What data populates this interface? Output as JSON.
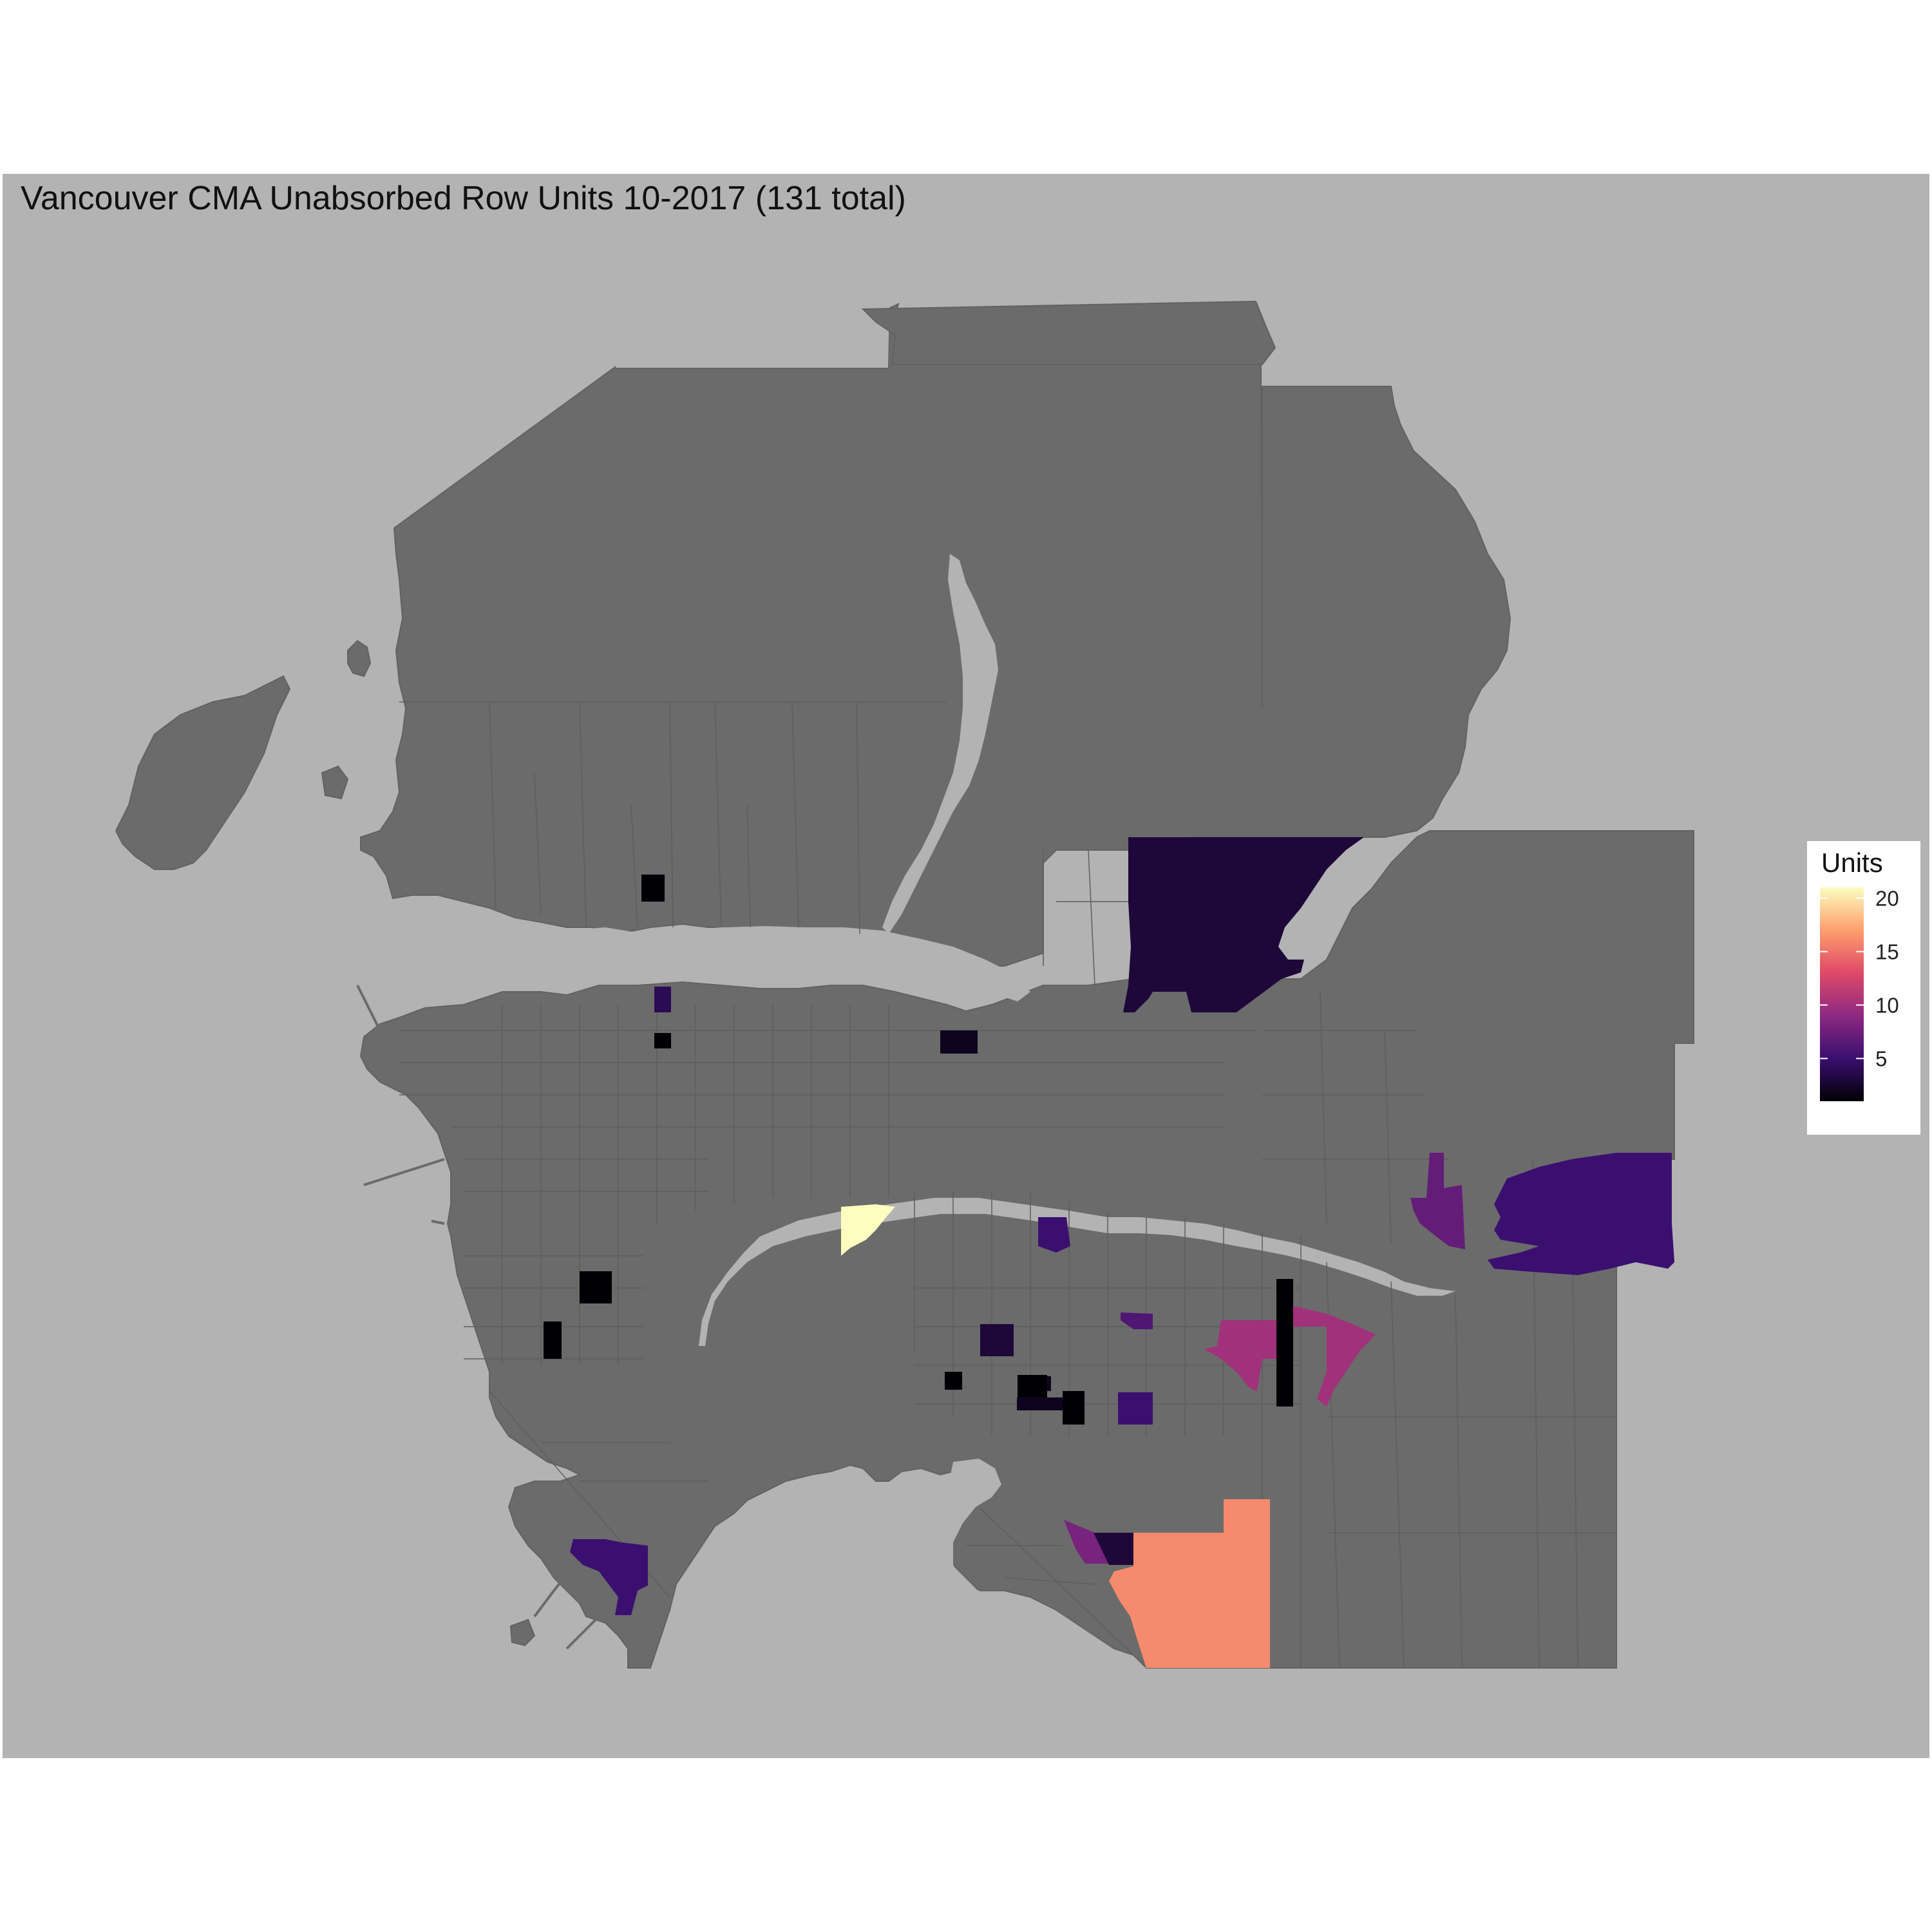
{
  "title": "Vancouver CMA Unabsorbed Row Units 10-2017 (131 total)",
  "colors": {
    "panel_background": "#b3b3b3",
    "land": "#6b6b6b",
    "water": "#b3b3b3",
    "boundary": "#5e5e5e"
  },
  "legend": {
    "title": "Units",
    "scale": "magma",
    "min": 1,
    "max": 21,
    "ticks": [
      {
        "value": 5,
        "label": "5"
      },
      {
        "value": 10,
        "label": "10"
      },
      {
        "value": 15,
        "label": "15"
      },
      {
        "value": 20,
        "label": "20"
      }
    ],
    "colors": [
      "#000004",
      "#3b0f70",
      "#8c2981",
      "#de4968",
      "#fe9f6d",
      "#fcfdbf"
    ]
  },
  "chart_data": {
    "type": "choropleth",
    "title": "Vancouver CMA Unabsorbed Row Units 10-2017 (131 total)",
    "legend_title": "Units",
    "total_units": 131,
    "color_range": [
      1,
      21
    ],
    "regions": [
      {
        "id": "north-van-block",
        "units": 1
      },
      {
        "id": "burnaby-north-east",
        "units": 3
      },
      {
        "id": "east-van-north",
        "units": 4
      },
      {
        "id": "east-van-north-small",
        "units": 1
      },
      {
        "id": "burnaby-hastings",
        "units": 2
      },
      {
        "id": "coquitlam-north",
        "units": 5
      },
      {
        "id": "coquitlam-west",
        "units": 7
      },
      {
        "id": "port-coquitlam",
        "units": 5
      },
      {
        "id": "richmond-central",
        "units": 21
      },
      {
        "id": "burnaby-south",
        "units": 3
      },
      {
        "id": "vancouver-west-a",
        "units": 1
      },
      {
        "id": "vancouver-west-b",
        "units": 1
      },
      {
        "id": "new-west-a",
        "units": 2
      },
      {
        "id": "new-west-b",
        "units": 6
      },
      {
        "id": "surrey-north-strip",
        "units": 1
      },
      {
        "id": "surrey-fleetwood",
        "units": 10
      },
      {
        "id": "surrey-block-a",
        "units": 1
      },
      {
        "id": "surrey-block-b",
        "units": 1
      },
      {
        "id": "surrey-block-c",
        "units": 2
      },
      {
        "id": "surrey-block-d",
        "units": 1
      },
      {
        "id": "surrey-block-e",
        "units": 5
      },
      {
        "id": "delta-tsawwassen",
        "units": 5
      },
      {
        "id": "surrey-south-small",
        "units": 8
      },
      {
        "id": "surrey-south-block",
        "units": 3
      },
      {
        "id": "south-surrey",
        "units": 16
      }
    ]
  }
}
